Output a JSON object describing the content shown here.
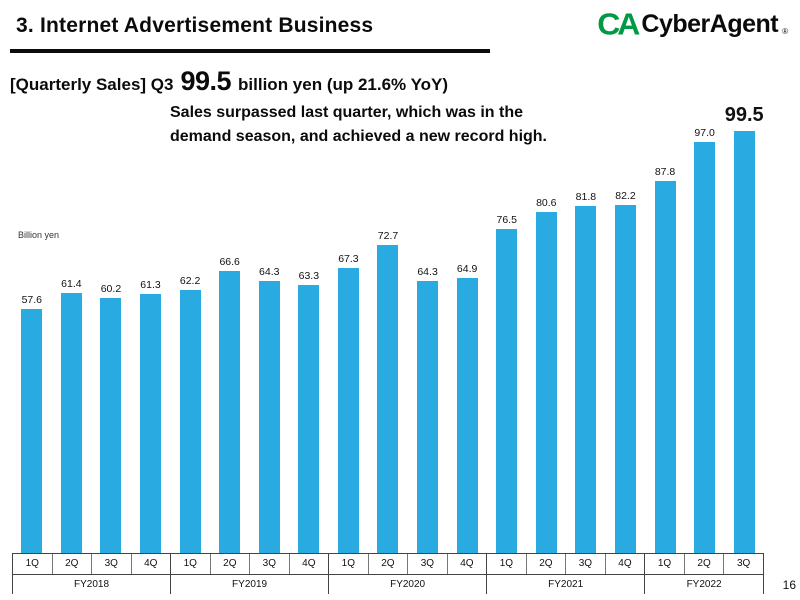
{
  "header": {
    "title": "3. Internet Advertisement Business",
    "logo": {
      "mark": "CA",
      "mark_color": "#009944",
      "text": "CyberAgent",
      "registered": "®"
    }
  },
  "subtitle": {
    "prefix": "[Quarterly Sales] Q3",
    "value": "99.5",
    "suffix": "billion yen (up 21.6% YoY)"
  },
  "annotation": {
    "line1": "Sales surpassed last quarter, which was in the",
    "line2": "demand season, and achieved a new record high."
  },
  "page_number": "16",
  "chart_data": {
    "type": "bar",
    "title": "Quarterly Sales",
    "unit_label": "Billion yen",
    "ylabel": "Billion yen",
    "xlabel": "",
    "ylim": [
      0,
      103
    ],
    "grid": false,
    "legend": "none",
    "bar_color": "#29abe2",
    "highlight_last_label": true,
    "groups": [
      {
        "year": "FY2018",
        "quarters": [
          "1Q",
          "2Q",
          "3Q",
          "4Q"
        ],
        "values": [
          57.6,
          61.4,
          60.2,
          61.3
        ],
        "labels": [
          "57.6",
          "61.4",
          "60.2",
          "61.3"
        ]
      },
      {
        "year": "FY2019",
        "quarters": [
          "1Q",
          "2Q",
          "3Q",
          "4Q"
        ],
        "values": [
          62.2,
          66.6,
          64.3,
          63.3
        ],
        "labels": [
          "62.2",
          "66.6",
          "64.3",
          "63.3"
        ]
      },
      {
        "year": "FY2020",
        "quarters": [
          "1Q",
          "2Q",
          "3Q",
          "4Q"
        ],
        "values": [
          67.3,
          72.7,
          64.3,
          64.9
        ],
        "labels": [
          "67.3",
          "72.7",
          "64.3",
          "64.9"
        ]
      },
      {
        "year": "FY2021",
        "quarters": [
          "1Q",
          "2Q",
          "3Q",
          "4Q"
        ],
        "values": [
          76.5,
          80.6,
          81.8,
          82.2
        ],
        "labels": [
          "76.5",
          "80.6",
          "81.8",
          "82.2"
        ]
      },
      {
        "year": "FY2022",
        "quarters": [
          "1Q",
          "2Q",
          "3Q"
        ],
        "values": [
          87.8,
          97.0,
          99.5
        ],
        "labels": [
          "87.8",
          "97.0",
          "99.5"
        ]
      }
    ]
  }
}
